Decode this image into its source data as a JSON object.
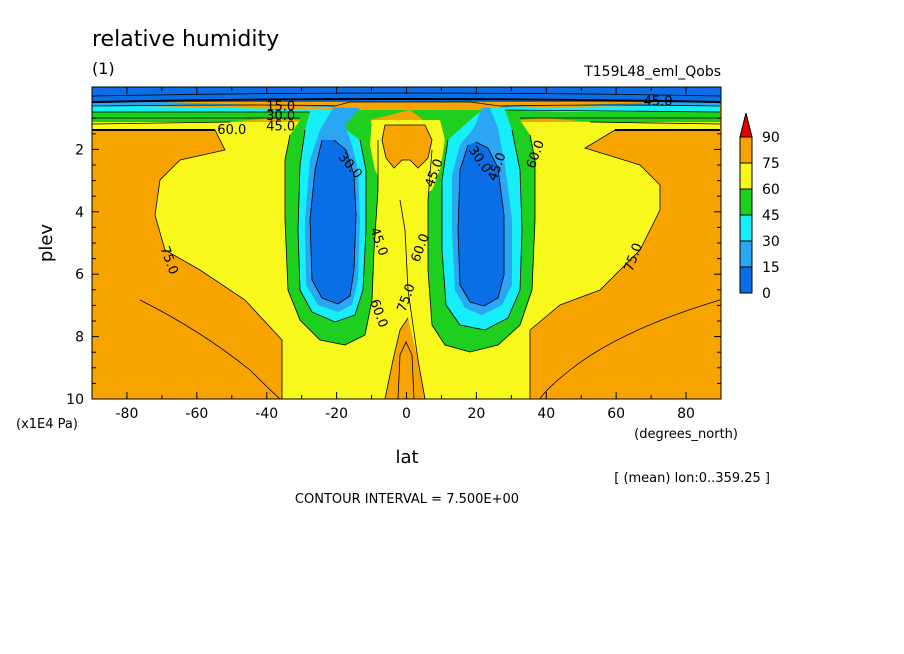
{
  "figure": {
    "title": "relative humidity",
    "panel_label": "(1)",
    "run_label": "T159L48_eml_Qobs",
    "y_unit": "(x1E4 Pa)",
    "x_unit": "(degrees_north)",
    "mean_note": "[ (mean) lon:0..359.25 ]",
    "contour_interval": "CONTOUR INTERVAL = 7.500E+00"
  },
  "colors": {
    "c0_15": "#0a6ee6",
    "c15_30": "#2aa6f2",
    "c30_45": "#16eefa",
    "c45_60": "#1fcf1f",
    "c60_75": "#f8f81c",
    "c75_90": "#f8a400",
    "c90": "#e60000"
  },
  "chart_data": {
    "type": "heatmap",
    "title": "relative humidity",
    "xlabel": "lat",
    "ylabel": "plev",
    "xlim": [
      -90,
      90
    ],
    "ylim": [
      10,
      0
    ],
    "x_ticks": [
      "-80",
      "-60",
      "-40",
      "-20",
      "0",
      "20",
      "40",
      "60",
      "80"
    ],
    "y_ticks": [
      "2",
      "4",
      "6",
      "8",
      "10"
    ],
    "legend_levels": [
      "90",
      "75",
      "60",
      "45",
      "30",
      "15",
      "0"
    ],
    "contour_labels": [
      {
        "text": "15.0",
        "lat": -36,
        "plev": 0.75
      },
      {
        "text": "30.0",
        "lat": -36,
        "plev": 1.05
      },
      {
        "text": "45.0",
        "lat": -36,
        "plev": 1.4
      },
      {
        "text": "60.0",
        "lat": -50,
        "plev": 1.5
      },
      {
        "text": "30.0",
        "lat": -17,
        "plev": 2.6
      },
      {
        "text": "45.0",
        "lat": -9,
        "plev": 5.0
      },
      {
        "text": "60.0",
        "lat": -9,
        "plev": 7.3
      },
      {
        "text": "75.0",
        "lat": -69,
        "plev": 5.6
      },
      {
        "text": "45.0",
        "lat": 9,
        "plev": 2.8
      },
      {
        "text": "60.0",
        "lat": 5,
        "plev": 5.2
      },
      {
        "text": "75.0",
        "lat": 1,
        "plev": 6.8
      },
      {
        "text": "30.0",
        "lat": 20,
        "plev": 2.4
      },
      {
        "text": "45.0",
        "lat": 27,
        "plev": 2.6
      },
      {
        "text": "60.0",
        "lat": 38,
        "plev": 2.2
      },
      {
        "text": "45.0",
        "lat": 72,
        "plev": 0.6
      },
      {
        "text": "75.0",
        "lat": 66,
        "plev": 5.5
      }
    ]
  }
}
